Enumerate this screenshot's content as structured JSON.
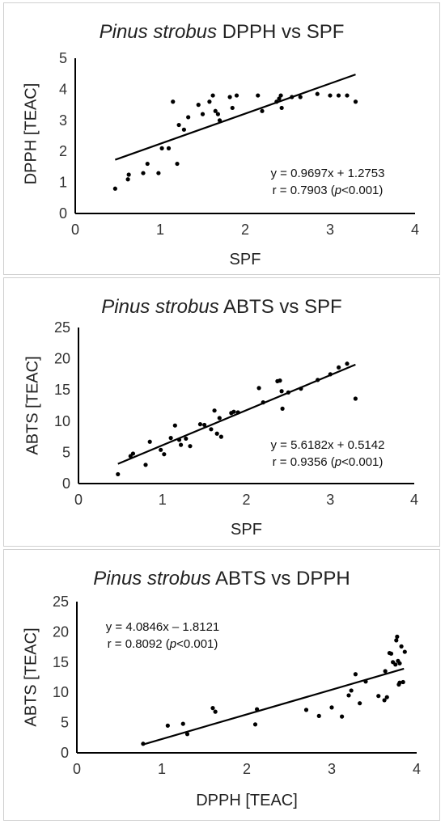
{
  "chart_data": [
    {
      "type": "scatter",
      "title_italic": "Pinus strobus",
      "title_rest": "DPPH vs SPF",
      "xlabel": "SPF",
      "ylabel": "DPPH [TEAC]",
      "xlim": [
        0,
        4
      ],
      "ylim": [
        0,
        5
      ],
      "xticks": [
        0,
        1,
        2,
        3,
        4
      ],
      "yticks": [
        0,
        1,
        2,
        3,
        4,
        5
      ],
      "equation": "y = 0.9697x + 1.2753",
      "r_prefix": "r = 0.7903 (",
      "r_p": "p",
      "r_suffix": "<0.001)",
      "trendline": {
        "slope": 0.9697,
        "intercept": 1.2753,
        "x_range": [
          0.47,
          3.3
        ]
      },
      "points": [
        [
          0.47,
          0.8
        ],
        [
          0.62,
          1.1
        ],
        [
          0.63,
          1.25
        ],
        [
          0.8,
          1.3
        ],
        [
          0.85,
          1.6
        ],
        [
          0.98,
          1.3
        ],
        [
          1.02,
          2.1
        ],
        [
          1.1,
          2.1
        ],
        [
          1.15,
          3.6
        ],
        [
          1.2,
          1.6
        ],
        [
          1.22,
          2.85
        ],
        [
          1.28,
          2.7
        ],
        [
          1.33,
          3.1
        ],
        [
          1.45,
          3.5
        ],
        [
          1.5,
          3.2
        ],
        [
          1.58,
          3.6
        ],
        [
          1.62,
          3.8
        ],
        [
          1.65,
          3.3
        ],
        [
          1.68,
          3.2
        ],
        [
          1.7,
          3.0
        ],
        [
          1.82,
          3.75
        ],
        [
          1.85,
          3.4
        ],
        [
          1.9,
          3.8
        ],
        [
          2.15,
          3.8
        ],
        [
          2.2,
          3.3
        ],
        [
          2.37,
          3.6
        ],
        [
          2.4,
          3.7
        ],
        [
          2.42,
          3.8
        ],
        [
          2.43,
          3.4
        ],
        [
          2.55,
          3.75
        ],
        [
          2.65,
          3.75
        ],
        [
          2.85,
          3.85
        ],
        [
          3.0,
          3.8
        ],
        [
          3.1,
          3.8
        ],
        [
          3.2,
          3.8
        ],
        [
          3.3,
          3.6
        ]
      ]
    },
    {
      "type": "scatter",
      "title_italic": "Pinus strobus",
      "title_rest": "ABTS vs SPF",
      "xlabel": "SPF",
      "ylabel": "ABTS [TEAC]",
      "xlim": [
        0,
        4
      ],
      "ylim": [
        0,
        25
      ],
      "xticks": [
        0,
        1,
        2,
        3,
        4
      ],
      "yticks": [
        0,
        5,
        10,
        15,
        20,
        25
      ],
      "equation": "y = 5.6182x + 0.5142",
      "r_prefix": "r = 0.9356 (",
      "r_p": "p",
      "r_suffix": "<0.001)",
      "trendline": {
        "slope": 5.6182,
        "intercept": 0.5142,
        "x_range": [
          0.47,
          3.3
        ]
      },
      "points": [
        [
          0.47,
          1.5
        ],
        [
          0.62,
          4.4
        ],
        [
          0.65,
          4.8
        ],
        [
          0.8,
          3.0
        ],
        [
          0.85,
          6.7
        ],
        [
          0.98,
          5.4
        ],
        [
          1.02,
          4.7
        ],
        [
          1.1,
          7.3
        ],
        [
          1.15,
          9.3
        ],
        [
          1.2,
          7.0
        ],
        [
          1.22,
          6.2
        ],
        [
          1.28,
          7.2
        ],
        [
          1.33,
          6.0
        ],
        [
          1.45,
          9.5
        ],
        [
          1.5,
          9.4
        ],
        [
          1.58,
          8.7
        ],
        [
          1.62,
          11.7
        ],
        [
          1.65,
          8.0
        ],
        [
          1.68,
          10.5
        ],
        [
          1.7,
          7.5
        ],
        [
          1.82,
          11.3
        ],
        [
          1.85,
          11.5
        ],
        [
          1.9,
          11.4
        ],
        [
          2.15,
          15.3
        ],
        [
          2.2,
          13.0
        ],
        [
          2.37,
          16.4
        ],
        [
          2.4,
          16.5
        ],
        [
          2.42,
          14.8
        ],
        [
          2.43,
          12.0
        ],
        [
          2.5,
          14.6
        ],
        [
          2.65,
          15.2
        ],
        [
          2.85,
          16.6
        ],
        [
          3.0,
          17.5
        ],
        [
          3.1,
          18.6
        ],
        [
          3.2,
          19.2
        ],
        [
          3.3,
          13.6
        ]
      ]
    },
    {
      "type": "scatter",
      "title_italic": "Pinus strobus",
      "title_rest": "ABTS vs DPPH",
      "xlabel": "DPPH [TEAC]",
      "ylabel": "ABTS [TEAC]",
      "xlim": [
        0,
        4
      ],
      "ylim": [
        0,
        25
      ],
      "xticks": [
        0,
        1,
        2,
        3,
        4
      ],
      "yticks": [
        0,
        5,
        10,
        15,
        20,
        25
      ],
      "equation": "y = 4.0846x – 1.8121",
      "r_prefix": "r = 0.8092 (",
      "r_p": "p",
      "r_suffix": "<0.001)",
      "trendline": {
        "slope": 4.0846,
        "intercept": -1.8121,
        "x_range": [
          0.78,
          3.85
        ]
      },
      "points": [
        [
          0.78,
          1.5
        ],
        [
          1.07,
          4.5
        ],
        [
          1.25,
          4.8
        ],
        [
          1.3,
          3.1
        ],
        [
          1.6,
          7.4
        ],
        [
          1.63,
          6.8
        ],
        [
          2.1,
          4.7
        ],
        [
          2.12,
          7.2
        ],
        [
          2.7,
          7.1
        ],
        [
          2.85,
          6.1
        ],
        [
          3.0,
          7.5
        ],
        [
          3.12,
          6.0
        ],
        [
          3.2,
          9.5
        ],
        [
          3.23,
          10.3
        ],
        [
          3.28,
          13.0
        ],
        [
          3.33,
          8.2
        ],
        [
          3.4,
          11.8
        ],
        [
          3.55,
          9.4
        ],
        [
          3.62,
          8.7
        ],
        [
          3.63,
          13.5
        ],
        [
          3.65,
          9.2
        ],
        [
          3.68,
          16.5
        ],
        [
          3.7,
          16.4
        ],
        [
          3.72,
          15.0
        ],
        [
          3.75,
          14.6
        ],
        [
          3.76,
          18.6
        ],
        [
          3.77,
          19.2
        ],
        [
          3.78,
          15.2
        ],
        [
          3.79,
          11.3
        ],
        [
          3.8,
          14.8
        ],
        [
          3.8,
          11.6
        ],
        [
          3.82,
          17.6
        ],
        [
          3.84,
          11.7
        ],
        [
          3.86,
          16.7
        ]
      ]
    }
  ]
}
